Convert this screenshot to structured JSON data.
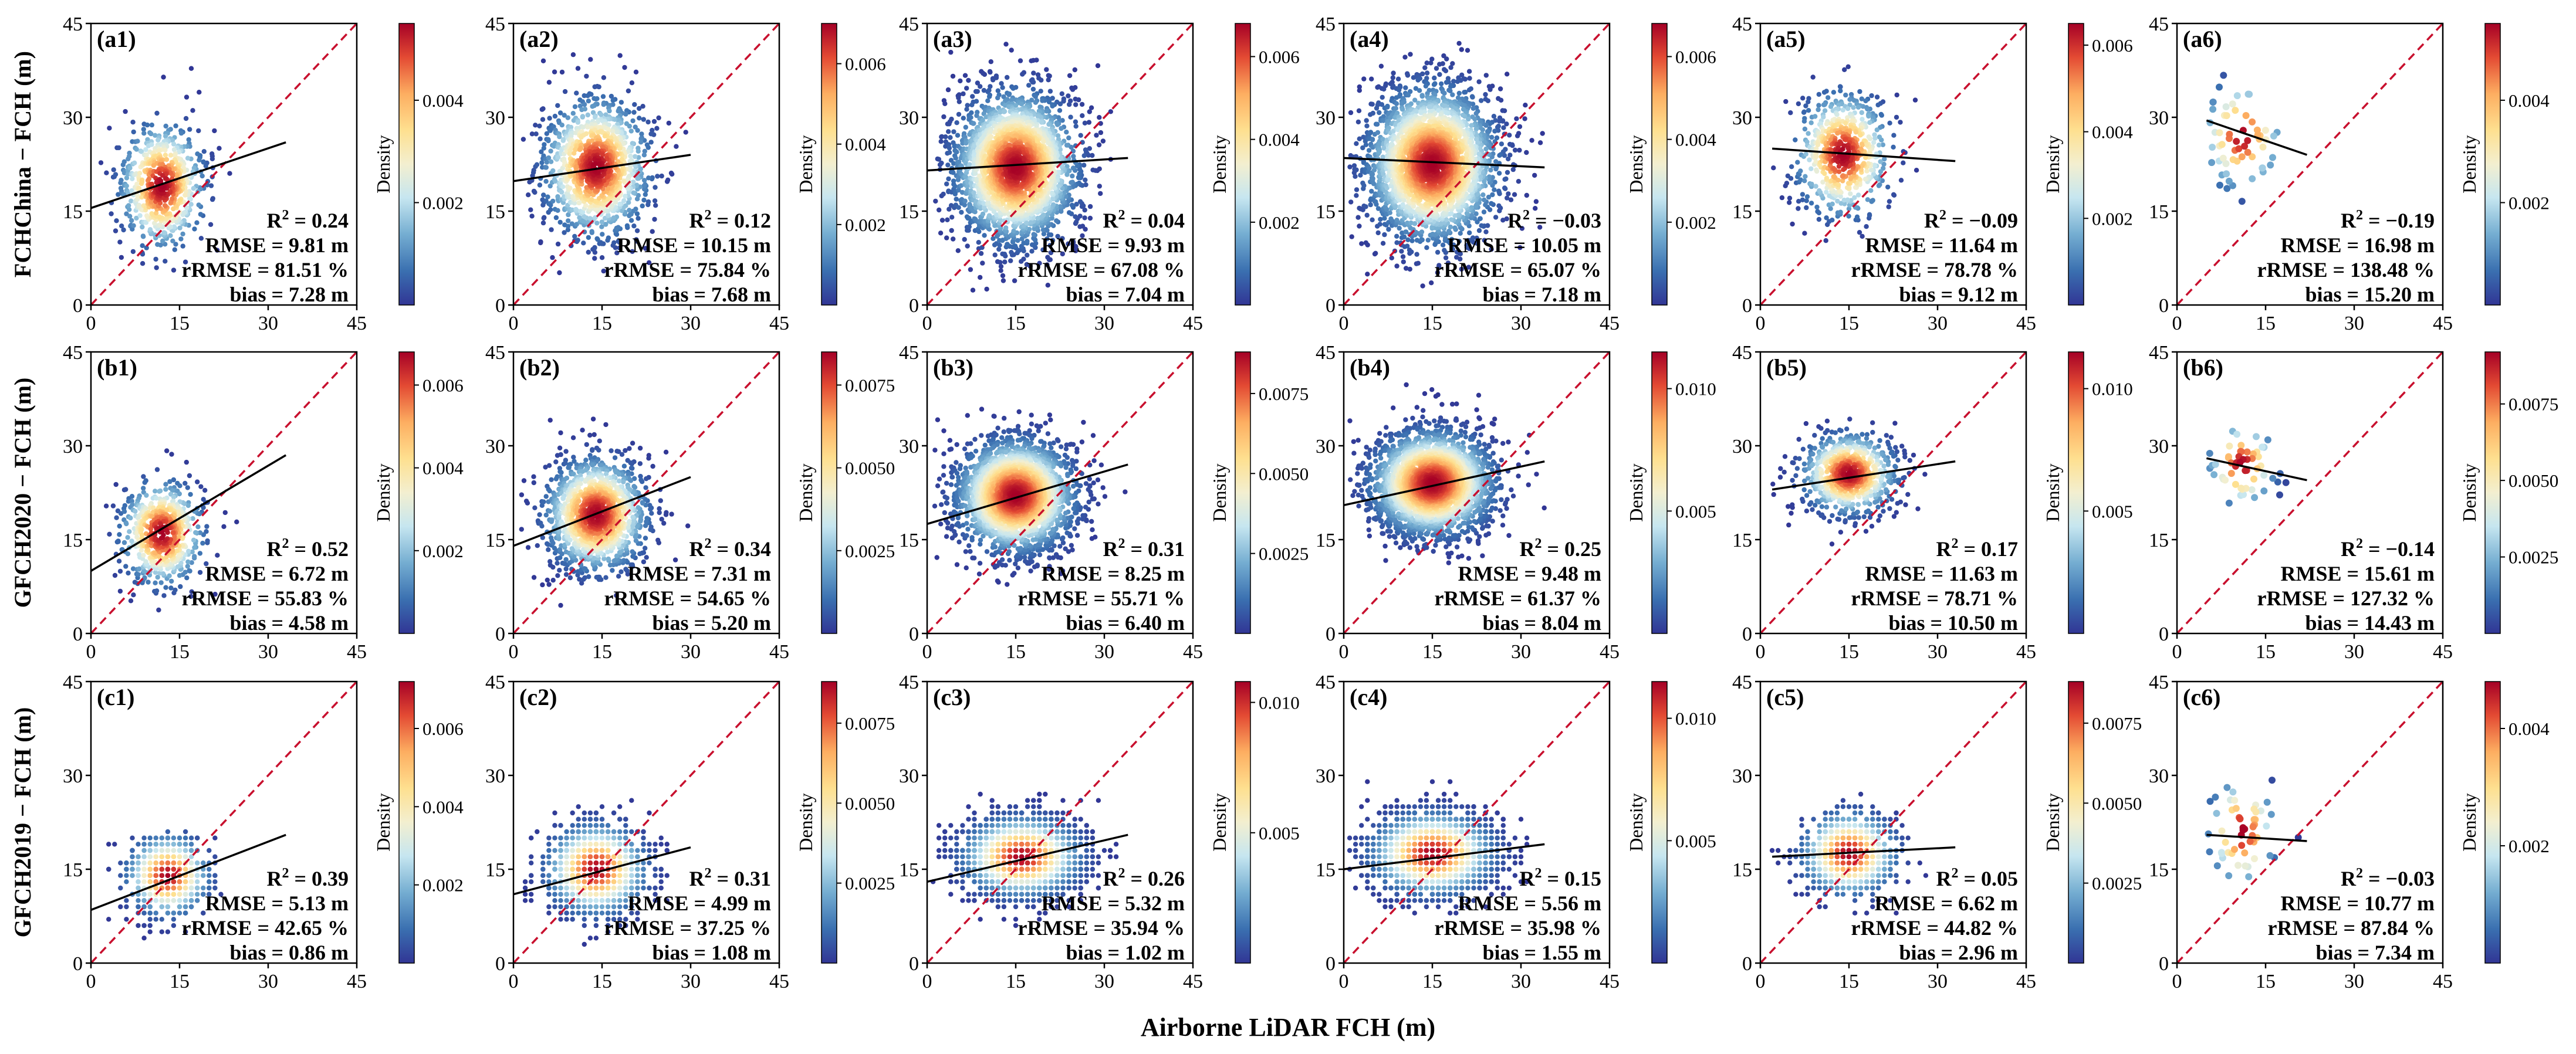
{
  "figure": {
    "xlabel": "Airborne LiDAR FCH (m)",
    "row_labels": [
      "FCHChina − FCH (m)",
      "GFCH2020 − FCH (m)",
      "GFCH2019 − FCH (m)"
    ],
    "colorbar_label": "Density"
  },
  "chart_data": [
    {
      "type": "scatter",
      "panel": "(a1)",
      "row": 0,
      "col": 0,
      "xlim": [
        0,
        45
      ],
      "ylim": [
        0,
        45
      ],
      "xticks": [
        0,
        15,
        30,
        45
      ],
      "yticks": [
        0,
        15,
        30,
        45
      ],
      "fit_line": {
        "x": [
          0,
          33
        ],
        "y": [
          15.5,
          26
        ]
      },
      "one_to_one": true,
      "stats": {
        "r2": "0.24",
        "rmse": "9.81",
        "rrmse": "81.51",
        "bias": "7.28"
      },
      "cloud": {
        "cx": 12,
        "cy": 19,
        "sx": 3.6,
        "sy": 5.0,
        "n": 650,
        "xmin": 1,
        "xmax": 33,
        "ymin": 2,
        "ymax": 40,
        "binned": false,
        "seed": 11
      },
      "colorbar": {
        "ticks": [
          "0.002",
          "0.004"
        ],
        "min": 0.0,
        "max": 0.0055
      }
    },
    {
      "type": "scatter",
      "panel": "(a2)",
      "row": 0,
      "col": 1,
      "xlim": [
        0,
        45
      ],
      "ylim": [
        0,
        45
      ],
      "xticks": [
        0,
        15,
        30,
        45
      ],
      "yticks": [
        0,
        15,
        30,
        45
      ],
      "fit_line": {
        "x": [
          0,
          30
        ],
        "y": [
          19.8,
          24
        ]
      },
      "one_to_one": true,
      "stats": {
        "r2": "0.12",
        "rmse": "10.15",
        "rrmse": "75.84",
        "bias": "7.68"
      },
      "cloud": {
        "cx": 14,
        "cy": 22,
        "sx": 4.5,
        "sy": 5.5,
        "n": 1200,
        "xmin": 1,
        "xmax": 30,
        "ymin": 2,
        "ymax": 42,
        "binned": false,
        "seed": 12
      },
      "colorbar": {
        "ticks": [
          "0.002",
          "0.004",
          "0.006"
        ],
        "min": 0.0,
        "max": 0.007
      }
    },
    {
      "type": "scatter",
      "panel": "(a3)",
      "row": 0,
      "col": 2,
      "xlim": [
        0,
        45
      ],
      "ylim": [
        0,
        45
      ],
      "xticks": [
        0,
        15,
        30,
        45
      ],
      "yticks": [
        0,
        15,
        30,
        45
      ],
      "fit_line": {
        "x": [
          0,
          34
        ],
        "y": [
          21.5,
          23.5
        ]
      },
      "one_to_one": true,
      "stats": {
        "r2": "0.04",
        "rmse": "9.93",
        "rrmse": "67.08",
        "bias": "7.04"
      },
      "cloud": {
        "cx": 15,
        "cy": 22,
        "sx": 5.2,
        "sy": 6.0,
        "n": 2600,
        "xmin": 1,
        "xmax": 34,
        "ymin": 2,
        "ymax": 42,
        "binned": false,
        "seed": 13
      },
      "colorbar": {
        "ticks": [
          "0.002",
          "0.004",
          "0.006"
        ],
        "min": 0.0,
        "max": 0.0068
      }
    },
    {
      "type": "scatter",
      "panel": "(a4)",
      "row": 0,
      "col": 3,
      "xlim": [
        0,
        45
      ],
      "ylim": [
        0,
        45
      ],
      "xticks": [
        0,
        15,
        30,
        45
      ],
      "yticks": [
        0,
        15,
        30,
        45
      ],
      "fit_line": {
        "x": [
          0,
          34
        ],
        "y": [
          23.5,
          22
        ]
      },
      "one_to_one": true,
      "stats": {
        "r2": "−0.03",
        "rmse": "10.05",
        "rrmse": "65.07",
        "bias": "7.18"
      },
      "cloud": {
        "cx": 15,
        "cy": 22.5,
        "sx": 5.5,
        "sy": 6.2,
        "n": 2800,
        "xmin": 1,
        "xmax": 34,
        "ymin": 3,
        "ymax": 42,
        "binned": false,
        "seed": 14
      },
      "colorbar": {
        "ticks": [
          "0.002",
          "0.004",
          "0.006"
        ],
        "min": 0.0,
        "max": 0.0068
      }
    },
    {
      "type": "scatter",
      "panel": "(a5)",
      "row": 0,
      "col": 4,
      "xlim": [
        0,
        45
      ],
      "ylim": [
        0,
        45
      ],
      "xticks": [
        0,
        15,
        30,
        45
      ],
      "yticks": [
        0,
        15,
        30,
        45
      ],
      "fit_line": {
        "x": [
          2,
          33
        ],
        "y": [
          25,
          23
        ]
      },
      "one_to_one": true,
      "stats": {
        "r2": "−0.09",
        "rmse": "11.64",
        "rrmse": "78.78",
        "bias": "9.12"
      },
      "cloud": {
        "cx": 14,
        "cy": 24,
        "sx": 4.0,
        "sy": 5.0,
        "n": 650,
        "xmin": 2,
        "xmax": 33,
        "ymin": 8,
        "ymax": 40,
        "binned": false,
        "seed": 15
      },
      "colorbar": {
        "ticks": [
          "0.002",
          "0.004",
          "0.006"
        ],
        "min": 0.0,
        "max": 0.0065
      }
    },
    {
      "type": "scatter",
      "panel": "(a6)",
      "row": 0,
      "col": 5,
      "xlim": [
        0,
        45
      ],
      "ylim": [
        0,
        45
      ],
      "xticks": [
        0,
        15,
        30,
        45
      ],
      "yticks": [
        0,
        15,
        30,
        45
      ],
      "fit_line": {
        "x": [
          5,
          22
        ],
        "y": [
          29.5,
          24
        ]
      },
      "one_to_one": true,
      "stats": {
        "r2": "−0.19",
        "rmse": "16.98",
        "rrmse": "138.48",
        "bias": "15.20"
      },
      "cloud": {
        "cx": 11,
        "cy": 27,
        "sx": 3.5,
        "sy": 4.5,
        "n": 60,
        "xmin": 5,
        "xmax": 23,
        "ymin": 12,
        "ymax": 37,
        "binned": false,
        "seed": 16
      },
      "colorbar": {
        "ticks": [
          "0.002",
          "0.004"
        ],
        "min": 0.0,
        "max": 0.0055
      }
    },
    {
      "type": "scatter",
      "panel": "(b1)",
      "row": 1,
      "col": 0,
      "xlim": [
        0,
        45
      ],
      "ylim": [
        0,
        45
      ],
      "xticks": [
        0,
        15,
        30,
        45
      ],
      "yticks": [
        0,
        15,
        30,
        45
      ],
      "fit_line": {
        "x": [
          0,
          33
        ],
        "y": [
          10,
          28.5
        ]
      },
      "one_to_one": true,
      "stats": {
        "r2": "0.52",
        "rmse": "6.72",
        "rrmse": "55.83",
        "bias": "4.58"
      },
      "cloud": {
        "cx": 12,
        "cy": 16,
        "sx": 3.5,
        "sy": 4.2,
        "n": 600,
        "xmin": 1,
        "xmax": 33,
        "ymin": 2,
        "ymax": 32,
        "binned": false,
        "seed": 21
      },
      "colorbar": {
        "ticks": [
          "0.002",
          "0.004",
          "0.006"
        ],
        "min": 0.0,
        "max": 0.0068
      }
    },
    {
      "type": "scatter",
      "panel": "(b2)",
      "row": 1,
      "col": 1,
      "xlim": [
        0,
        45
      ],
      "ylim": [
        0,
        45
      ],
      "xticks": [
        0,
        15,
        30,
        45
      ],
      "yticks": [
        0,
        15,
        30,
        45
      ],
      "fit_line": {
        "x": [
          0,
          30
        ],
        "y": [
          14,
          25
        ]
      },
      "one_to_one": true,
      "stats": {
        "r2": "0.34",
        "rmse": "7.31",
        "rrmse": "54.65",
        "bias": "5.20"
      },
      "cloud": {
        "cx": 14,
        "cy": 19,
        "sx": 4.3,
        "sy": 4.5,
        "n": 1300,
        "xmin": 1,
        "xmax": 30,
        "ymin": 2,
        "ymax": 38,
        "binned": false,
        "seed": 22
      },
      "colorbar": {
        "ticks": [
          "0.0025",
          "0.0050",
          "0.0075"
        ],
        "min": 0.0,
        "max": 0.0085
      }
    },
    {
      "type": "scatter",
      "panel": "(b3)",
      "row": 1,
      "col": 2,
      "xlim": [
        0,
        45
      ],
      "ylim": [
        0,
        45
      ],
      "xticks": [
        0,
        15,
        30,
        45
      ],
      "yticks": [
        0,
        15,
        30,
        45
      ],
      "fit_line": {
        "x": [
          0,
          34
        ],
        "y": [
          17.5,
          27
        ]
      },
      "one_to_one": true,
      "stats": {
        "r2": "0.31",
        "rmse": "8.25",
        "rrmse": "55.71",
        "bias": "6.40"
      },
      "cloud": {
        "cx": 15,
        "cy": 22,
        "sx": 5.0,
        "sy": 4.5,
        "n": 2600,
        "xmin": 1,
        "xmax": 34,
        "ymin": 5,
        "ymax": 38,
        "binned": false,
        "seed": 23
      },
      "colorbar": {
        "ticks": [
          "0.0025",
          "0.0050",
          "0.0075"
        ],
        "min": 0.0,
        "max": 0.0088
      }
    },
    {
      "type": "scatter",
      "panel": "(b4)",
      "row": 1,
      "col": 3,
      "xlim": [
        0,
        45
      ],
      "ylim": [
        0,
        45
      ],
      "xticks": [
        0,
        15,
        30,
        45
      ],
      "yticks": [
        0,
        15,
        30,
        45
      ],
      "fit_line": {
        "x": [
          0,
          34
        ],
        "y": [
          20.5,
          27.5
        ]
      },
      "one_to_one": true,
      "stats": {
        "r2": "0.25",
        "rmse": "9.48",
        "rrmse": "61.37",
        "bias": "8.04"
      },
      "cloud": {
        "cx": 15,
        "cy": 24,
        "sx": 5.2,
        "sy": 4.2,
        "n": 2800,
        "xmin": 1,
        "xmax": 34,
        "ymin": 10,
        "ymax": 40,
        "binned": false,
        "seed": 24
      },
      "colorbar": {
        "ticks": [
          "0.005",
          "0.010"
        ],
        "min": 0.0,
        "max": 0.0115
      }
    },
    {
      "type": "scatter",
      "panel": "(b5)",
      "row": 1,
      "col": 4,
      "xlim": [
        0,
        45
      ],
      "ylim": [
        0,
        45
      ],
      "xticks": [
        0,
        15,
        30,
        45
      ],
      "yticks": [
        0,
        15,
        30,
        45
      ],
      "fit_line": {
        "x": [
          2,
          33
        ],
        "y": [
          23,
          27.5
        ]
      },
      "one_to_one": true,
      "stats": {
        "r2": "0.17",
        "rmse": "11.63",
        "rrmse": "78.71",
        "bias": "10.50"
      },
      "cloud": {
        "cx": 15,
        "cy": 25.5,
        "sx": 4.0,
        "sy": 3.2,
        "n": 800,
        "xmin": 2,
        "xmax": 33,
        "ymin": 14,
        "ymax": 38,
        "binned": false,
        "seed": 25
      },
      "colorbar": {
        "ticks": [
          "0.005",
          "0.010"
        ],
        "min": 0.0,
        "max": 0.0115
      }
    },
    {
      "type": "scatter",
      "panel": "(b6)",
      "row": 1,
      "col": 5,
      "xlim": [
        0,
        45
      ],
      "ylim": [
        0,
        45
      ],
      "xticks": [
        0,
        15,
        30,
        45
      ],
      "yticks": [
        0,
        15,
        30,
        45
      ],
      "fit_line": {
        "x": [
          5,
          22
        ],
        "y": [
          28,
          24.5
        ]
      },
      "one_to_one": true,
      "stats": {
        "r2": "−0.14",
        "rmse": "15.61",
        "rrmse": "127.32",
        "bias": "14.43"
      },
      "cloud": {
        "cx": 11,
        "cy": 27,
        "sx": 3.0,
        "sy": 3.5,
        "n": 55,
        "xmin": 5,
        "xmax": 23,
        "ymin": 14,
        "ymax": 37,
        "binned": false,
        "seed": 26
      },
      "colorbar": {
        "ticks": [
          "0.0025",
          "0.0050",
          "0.0075"
        ],
        "min": 0.0,
        "max": 0.0092
      }
    },
    {
      "type": "scatter",
      "panel": "(c1)",
      "row": 2,
      "col": 0,
      "xlim": [
        0,
        45
      ],
      "ylim": [
        0,
        45
      ],
      "xticks": [
        0,
        15,
        30,
        45
      ],
      "yticks": [
        0,
        15,
        30,
        45
      ],
      "fit_line": {
        "x": [
          0,
          33
        ],
        "y": [
          8.5,
          20.5
        ]
      },
      "one_to_one": true,
      "stats": {
        "r2": "0.39",
        "rmse": "5.13",
        "rrmse": "42.65",
        "bias": "0.86"
      },
      "cloud": {
        "cx": 13,
        "cy": 14,
        "sx": 3.5,
        "sy": 3.2,
        "n": 650,
        "xmin": 1,
        "xmax": 22,
        "ymin": 1,
        "ymax": 21,
        "binned": true,
        "seed": 31
      },
      "colorbar": {
        "ticks": [
          "0.002",
          "0.004",
          "0.006"
        ],
        "min": 0.0,
        "max": 0.0072
      }
    },
    {
      "type": "scatter",
      "panel": "(c2)",
      "row": 2,
      "col": 1,
      "xlim": [
        0,
        45
      ],
      "ylim": [
        0,
        45
      ],
      "xticks": [
        0,
        15,
        30,
        45
      ],
      "yticks": [
        0,
        15,
        30,
        45
      ],
      "fit_line": {
        "x": [
          0,
          30
        ],
        "y": [
          11,
          18.5
        ]
      },
      "one_to_one": true,
      "stats": {
        "r2": "0.31",
        "rmse": "4.99",
        "rrmse": "37.25",
        "bias": "1.08"
      },
      "cloud": {
        "cx": 14,
        "cy": 15,
        "sx": 4.2,
        "sy": 3.6,
        "n": 1300,
        "xmin": 1,
        "xmax": 30,
        "ymin": 3,
        "ymax": 30,
        "binned": true,
        "seed": 32
      },
      "colorbar": {
        "ticks": [
          "0.0025",
          "0.0050",
          "0.0075"
        ],
        "min": 0.0,
        "max": 0.0088
      }
    },
    {
      "type": "scatter",
      "panel": "(c3)",
      "row": 2,
      "col": 2,
      "xlim": [
        0,
        45
      ],
      "ylim": [
        0,
        45
      ],
      "xticks": [
        0,
        15,
        30,
        45
      ],
      "yticks": [
        0,
        15,
        30,
        45
      ],
      "fit_line": {
        "x": [
          0,
          34
        ],
        "y": [
          13,
          20.5
        ]
      },
      "one_to_one": true,
      "stats": {
        "r2": "0.26",
        "rmse": "5.32",
        "rrmse": "35.94",
        "bias": "1.02"
      },
      "cloud": {
        "cx": 16,
        "cy": 17,
        "sx": 5.0,
        "sy": 3.2,
        "n": 2600,
        "xmin": 1,
        "xmax": 34,
        "ymin": 5,
        "ymax": 35,
        "binned": true,
        "seed": 33
      },
      "colorbar": {
        "ticks": [
          "0.005",
          "0.010"
        ],
        "min": 0.0,
        "max": 0.0108
      }
    },
    {
      "type": "scatter",
      "panel": "(c4)",
      "row": 2,
      "col": 3,
      "xlim": [
        0,
        45
      ],
      "ylim": [
        0,
        45
      ],
      "xticks": [
        0,
        15,
        30,
        45
      ],
      "yticks": [
        0,
        15,
        30,
        45
      ],
      "fit_line": {
        "x": [
          0,
          34
        ],
        "y": [
          15,
          19
        ]
      },
      "one_to_one": true,
      "stats": {
        "r2": "0.15",
        "rmse": "5.56",
        "rrmse": "35.98",
        "bias": "1.55"
      },
      "cloud": {
        "cx": 15,
        "cy": 17.5,
        "sx": 5.2,
        "sy": 3.3,
        "n": 2600,
        "xmin": 1,
        "xmax": 34,
        "ymin": 7,
        "ymax": 30,
        "binned": true,
        "seed": 34
      },
      "colorbar": {
        "ticks": [
          "0.005",
          "0.010"
        ],
        "min": 0.0,
        "max": 0.0115
      }
    },
    {
      "type": "scatter",
      "panel": "(c5)",
      "row": 2,
      "col": 4,
      "xlim": [
        0,
        45
      ],
      "ylim": [
        0,
        45
      ],
      "xticks": [
        0,
        15,
        30,
        45
      ],
      "yticks": [
        0,
        15,
        30,
        45
      ],
      "fit_line": {
        "x": [
          2,
          33
        ],
        "y": [
          17,
          18.5
        ]
      },
      "one_to_one": true,
      "stats": {
        "r2": "0.05",
        "rmse": "6.62",
        "rrmse": "44.82",
        "bias": "2.96"
      },
      "cloud": {
        "cx": 15,
        "cy": 17.5,
        "sx": 4.0,
        "sy": 3.3,
        "n": 900,
        "xmin": 2,
        "xmax": 33,
        "ymin": 7,
        "ymax": 35,
        "binned": true,
        "seed": 35
      },
      "colorbar": {
        "ticks": [
          "0.0025",
          "0.0050",
          "0.0075"
        ],
        "min": 0.0,
        "max": 0.0088
      }
    },
    {
      "type": "scatter",
      "panel": "(c6)",
      "row": 2,
      "col": 5,
      "xlim": [
        0,
        45
      ],
      "ylim": [
        0,
        45
      ],
      "xticks": [
        0,
        15,
        30,
        45
      ],
      "yticks": [
        0,
        15,
        30,
        45
      ],
      "fit_line": {
        "x": [
          5,
          22
        ],
        "y": [
          20.5,
          19.5
        ]
      },
      "one_to_one": true,
      "stats": {
        "r2": "−0.03",
        "rmse": "10.77",
        "rrmse": "87.84",
        "bias": "7.34"
      },
      "cloud": {
        "cx": 11,
        "cy": 21,
        "sx": 3.0,
        "sy": 4.5,
        "n": 55,
        "xmin": 5,
        "xmax": 23,
        "ymin": 8,
        "ymax": 34,
        "binned": false,
        "seed": 36
      },
      "colorbar": {
        "ticks": [
          "0.002",
          "0.004"
        ],
        "min": 0.0,
        "max": 0.0048
      }
    }
  ]
}
